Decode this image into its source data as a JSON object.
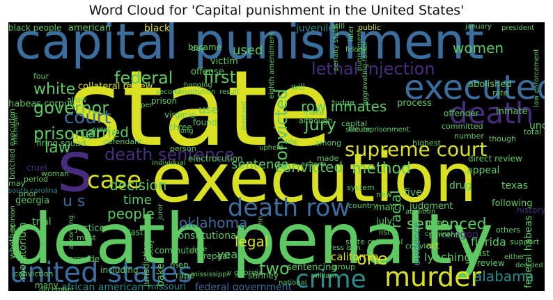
{
  "title": "Word Cloud for 'Capital punishment in the United States'",
  "colors": {
    "background": "#000000",
    "yellow": "#d9e021",
    "green": "#5ec962",
    "teal": "#2c8c8c",
    "blue": "#3b6e9c",
    "purple": "#472d7b"
  },
  "words": {
    "state": "state",
    "execution": "execution",
    "death_penalty": "death penalty",
    "capital_punishment": "capital punishment",
    "united_states": "united states",
    "death_row": "death row",
    "executed": "executed",
    "death": "death",
    "crime": "crime",
    "murder": "murder",
    "death_sentence": "death sentence",
    "supreme_court": "supreme court",
    "lethal_injection": "lethal injection",
    "case": "case",
    "s": "s",
    "federal": "federal",
    "prisoner": "prisoner",
    "governor": "governor",
    "court": "court",
    "method": "method",
    "first": "first",
    "white": "white",
    "law": "law",
    "jury": "jury",
    "carried": "carried",
    "row_inmates": "row inmates",
    "convicted": "convicted",
    "decision": "decision",
    "people": "people",
    "oklahoma": "oklahoma",
    "u_s": "u s",
    "sentence": "sentence",
    "sentenced": "sentenced",
    "legal": "legal",
    "time": "time",
    "two": "two",
    "one": "one",
    "alabama": "alabama",
    "women": "women",
    "used": "used",
    "year": "year",
    "found": "found",
    "use": "use",
    "california": "california",
    "lynching": "lynching",
    "florida": "florida",
    "oregon": "oregon",
    "texas": "texas",
    "appeal": "appeal",
    "five": "five",
    "drug": "drug",
    "racial": "racial",
    "black": "black",
    "american": "american",
    "black_people": "black people",
    "became": "became",
    "juvenile": "juvenile",
    "victim": "victim",
    "offense": "offense",
    "collateral_review": "collateral review",
    "habeas_corpus": "habeas corpus",
    "abolished": "abolished",
    "process": "process",
    "inmate": "inmate",
    "rate": "rate",
    "offender": "offender",
    "virginia": "virginia",
    "firing_squad": "firing squad",
    "electrocution": "electrocution",
    "african_american": "african american",
    "federal_government": "federal government",
    "missouri": "missouri",
    "constitutional": "constitutional",
    "trial": "trial",
    "justice": "justice",
    "georgia": "georgia",
    "unconstitutional": "unconstitutional",
    "direct_review": "direct review",
    "following": "following",
    "judgment": "judgment",
    "july": "july",
    "march": "march",
    "new": "new",
    "state_collateral": "state collateral",
    "least": "least",
    "review": "review",
    "act": "act",
    "public": "public",
    "still": "still",
    "prison": "prison",
    "judge": "judge",
    "will": "will",
    "hanging": "hanging",
    "three": "three",
    "make": "make",
    "capital": "capital",
    "although": "although",
    "life": "life",
    "among": "among",
    "made": "made",
    "system": "system",
    "person": "person",
    "many": "many",
    "including": "including",
    "conviction": "conviction",
    "provide": "provide",
    "commuted": "commuted",
    "men": "men",
    "repeal": "repeal",
    "baker": "baker",
    "rape": "rape",
    "jurisdiction": "jurisdiction",
    "others": "others",
    "federal_habeas": "federal habeas",
    "sentencing": "sentencing",
    "group": "group",
    "convict": "convict",
    "country": "country",
    "list": "list",
    "level": "level",
    "percent": "percent",
    "support": "support",
    "evidence": "evidence",
    "moratorium": "moratorium",
    "whether": "whether",
    "cruel": "cruel",
    "may": "may",
    "period": "period",
    "woman": "woman",
    "prior": "prior",
    "four": "four",
    "stinney": "stinney",
    "history": "history",
    "last": "last",
    "must": "must",
    "day": "day",
    "defendant": "defendant",
    "allow": "allow",
    "committed": "committed",
    "number": "number",
    "total": "total",
    "though": "though",
    "highest": "highest",
    "botched_execution": "botched execution",
    "stay": "stay",
    "felony": "felony",
    "january": "january",
    "second": "second",
    "constitution": "constitution",
    "result": "result",
    "eighth_amendment": "eighth amendment",
    "upheld": "upheld",
    "statute": "statute",
    "life_imprisonment": "life imprisonment",
    "arizona": "arizona",
    "south_carolina": "south carolina",
    "december": "december",
    "june": "june",
    "press_isbn": "press isbn",
    "national": "national",
    "criminal": "criminal",
    "abolition": "abolition",
    "mississippi": "mississippi",
    "v_georgia": "v georgia",
    "william": "william",
    "either": "either",
    "penalty_state": "penalty state",
    "individual": "individual",
    "involved": "involved",
    "according": "according",
    "decided": "decided",
    "opinion": "opinion",
    "michigan": "michigan",
    "law_enforcement": "law enforcement",
    "aggravating_factor": "aggravating factor",
    "punishment": "punishment",
    "later": "later",
    "per": "per",
    "long": "long",
    "order": "order",
    "mexico": "mexico",
    "john": "john",
    "juror": "juror",
    "president": "president"
  }
}
